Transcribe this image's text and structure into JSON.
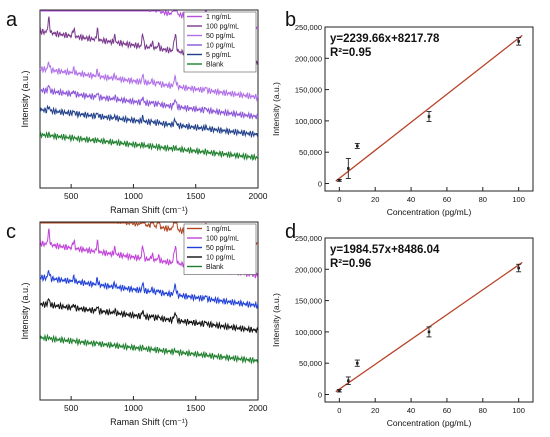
{
  "chart_data": [
    {
      "panel": "a",
      "type": "line",
      "xlabel": "Raman Shift (cm⁻¹)",
      "ylabel": "Intensity (a.u.)",
      "xlim": [
        250,
        2000
      ],
      "xticks": [
        500,
        1000,
        1500,
        2000
      ],
      "legend_position": "top-right",
      "series": [
        {
          "name": "1 ng/mL",
          "color": "#b44fe0",
          "offset": 0.1,
          "scale": 1.0,
          "slope": 0.2
        },
        {
          "name": "100 pg/mL",
          "color": "#7a3a8c",
          "offset": 0.3,
          "scale": 0.55,
          "slope": 0.18
        },
        {
          "name": "50 pg/mL",
          "color": "#b070e8",
          "offset": 0.49,
          "scale": 0.3,
          "slope": 0.16
        },
        {
          "name": "10 pg/mL",
          "color": "#8a55d8",
          "offset": 0.6,
          "scale": 0.22,
          "slope": 0.15
        },
        {
          "name": "5 pg/mL",
          "color": "#1f3f8a",
          "offset": 0.7,
          "scale": 0.16,
          "slope": 0.14
        },
        {
          "name": "Blank",
          "color": "#1e7f2d",
          "offset": 0.83,
          "scale": 0.04,
          "slope": 0.13
        }
      ]
    },
    {
      "panel": "b",
      "type": "scatter",
      "xlabel": "Concentration (pg/mL)",
      "ylabel": "Intensity (a.u.)",
      "xlim": [
        -8,
        108
      ],
      "ylim": [
        -12000,
        250000
      ],
      "xticks": [
        0,
        20,
        40,
        60,
        80,
        100
      ],
      "yticks": [
        0,
        50000,
        100000,
        150000,
        200000,
        250000
      ],
      "yticklabels": [
        "0",
        "50,000",
        "100,000",
        "150,000",
        "200,000",
        "250,000"
      ],
      "annotations": [
        "y=2239.66x+8217.78",
        "R²=0.95"
      ],
      "fit": {
        "slope": 2239.66,
        "intercept": 8217.78,
        "color": "#b8432a"
      },
      "points": [
        {
          "x": 0,
          "y": 5000,
          "err": 1500
        },
        {
          "x": 5,
          "y": 24000,
          "err": 16000
        },
        {
          "x": 10,
          "y": 60000,
          "err": 4000
        },
        {
          "x": 50,
          "y": 107000,
          "err": 8000
        },
        {
          "x": 100,
          "y": 227000,
          "err": 6000
        }
      ]
    },
    {
      "panel": "c",
      "type": "line",
      "xlabel": "Raman Shift (cm⁻¹)",
      "ylabel": "Intensity (a.u.)",
      "xlim": [
        250,
        2000
      ],
      "xticks": [
        500,
        1000,
        1500,
        2000
      ],
      "legend_position": "top-right",
      "series": [
        {
          "name": "1 ng/mL",
          "color": "#b0451f",
          "offset": 0.12,
          "scale": 1.0,
          "slope": 0.2
        },
        {
          "name": "100 pg/mL",
          "color": "#c044d8",
          "offset": 0.3,
          "scale": 0.55,
          "slope": 0.18
        },
        {
          "name": "50 pg/mL",
          "color": "#1f3fd8",
          "offset": 0.47,
          "scale": 0.3,
          "slope": 0.16
        },
        {
          "name": "10 pg/mL",
          "color": "#111111",
          "offset": 0.61,
          "scale": 0.24,
          "slope": 0.15
        },
        {
          "name": "Blank",
          "color": "#1e7f2d",
          "offset": 0.78,
          "scale": 0.05,
          "slope": 0.13
        }
      ]
    },
    {
      "panel": "d",
      "type": "scatter",
      "xlabel": "Concentration (pg/mL)",
      "ylabel": "Intensity (a.u.)",
      "xlim": [
        -8,
        108
      ],
      "ylim": [
        -12000,
        250000
      ],
      "xticks": [
        0,
        20,
        40,
        60,
        80,
        100
      ],
      "yticks": [
        0,
        50000,
        100000,
        150000,
        200000,
        250000
      ],
      "yticklabels": [
        "0",
        "50,000",
        "100,000",
        "150,000",
        "200,000",
        "250,000"
      ],
      "annotations": [
        "y=1984.57x+8486.04",
        "R²=0.96"
      ],
      "fit": {
        "slope": 1984.57,
        "intercept": 8486.04,
        "color": "#b8432a"
      },
      "points": [
        {
          "x": 0,
          "y": 6000,
          "err": 2000
        },
        {
          "x": 5,
          "y": 22000,
          "err": 6000
        },
        {
          "x": 10,
          "y": 50000,
          "err": 5000
        },
        {
          "x": 50,
          "y": 100000,
          "err": 8000
        },
        {
          "x": 100,
          "y": 202000,
          "err": 6000
        }
      ]
    }
  ]
}
